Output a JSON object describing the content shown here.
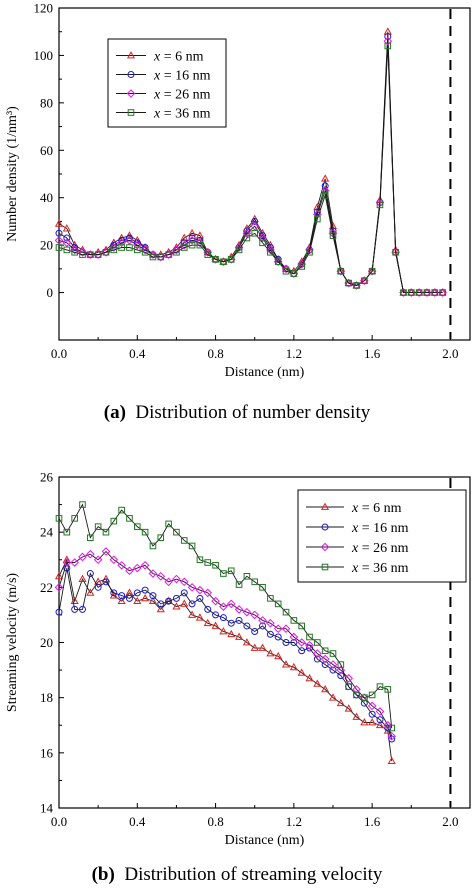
{
  "captions": [
    {
      "letter": "(a)",
      "text": "Distribution of number density"
    },
    {
      "letter": "(b)",
      "text": "Distribution of streaming velocity"
    }
  ],
  "colors": {
    "s6": "#e0201e",
    "s16": "#1a1ad6",
    "s26": "#ee10ee",
    "s36": "#1f7a1f",
    "axis": "#000000"
  },
  "chart_data": [
    {
      "type": "line",
      "xlabel": "Distance (nm)",
      "ylabel": "Number density (1/nm³)",
      "xlim": [
        0.0,
        2.1
      ],
      "ylim": [
        -20,
        120
      ],
      "xticks": [
        0.0,
        0.4,
        0.8,
        1.2,
        1.6,
        2.0
      ],
      "yticks": [
        0,
        20,
        40,
        60,
        80,
        100,
        120
      ],
      "grid": false,
      "legend_position": "top-left",
      "reference_line_x": 2.0,
      "x": [
        0.0,
        0.04,
        0.08,
        0.12,
        0.16,
        0.2,
        0.24,
        0.28,
        0.32,
        0.36,
        0.4,
        0.44,
        0.48,
        0.52,
        0.56,
        0.6,
        0.64,
        0.68,
        0.72,
        0.76,
        0.8,
        0.84,
        0.88,
        0.92,
        0.96,
        1.0,
        1.04,
        1.08,
        1.12,
        1.16,
        1.2,
        1.24,
        1.28,
        1.32,
        1.36,
        1.4,
        1.44,
        1.48,
        1.52,
        1.56,
        1.6,
        1.64,
        1.68,
        1.72,
        1.76,
        1.8,
        1.84,
        1.88,
        1.92,
        1.96
      ],
      "series": [
        {
          "name": "x = 6 nm",
          "symbol": "triangle",
          "color_key": "s6",
          "values": [
            29,
            27,
            20,
            18,
            16,
            17,
            18,
            21,
            23,
            24,
            22,
            19,
            16,
            16,
            17,
            19,
            23,
            25,
            24,
            17,
            14,
            13,
            15,
            20,
            27,
            31,
            25,
            20,
            14,
            10,
            9,
            13,
            19,
            36,
            48,
            28,
            9,
            4,
            3,
            5,
            9,
            39,
            110,
            18,
            0,
            0,
            0,
            0,
            0,
            0
          ]
        },
        {
          "name": "x = 16 nm",
          "symbol": "circle",
          "color_key": "s16",
          "values": [
            25,
            23,
            19,
            17,
            16,
            16,
            17,
            20,
            22,
            23,
            21,
            19,
            16,
            15,
            16,
            18,
            21,
            23,
            22,
            17,
            14,
            13,
            14,
            19,
            26,
            30,
            24,
            19,
            14,
            10,
            8,
            12,
            18,
            34,
            45,
            26,
            9,
            4,
            3,
            5,
            9,
            38,
            108,
            17,
            0,
            0,
            0,
            0,
            0,
            0
          ]
        },
        {
          "name": "x = 26 nm",
          "symbol": "diamond",
          "color_key": "s26",
          "values": [
            22,
            21,
            18,
            17,
            16,
            16,
            17,
            19,
            21,
            22,
            20,
            18,
            16,
            15,
            16,
            18,
            20,
            22,
            21,
            17,
            14,
            13,
            14,
            19,
            25,
            28,
            23,
            18,
            13,
            10,
            8,
            12,
            18,
            33,
            43,
            25,
            9,
            4,
            3,
            5,
            9,
            38,
            106,
            17,
            0,
            0,
            0,
            0,
            0,
            0
          ]
        },
        {
          "name": "x = 36 nm",
          "symbol": "square",
          "color_key": "s36",
          "values": [
            19,
            18,
            17,
            16,
            16,
            16,
            17,
            18,
            19,
            19,
            18,
            17,
            15,
            15,
            16,
            17,
            19,
            20,
            20,
            16,
            14,
            13,
            14,
            18,
            23,
            25,
            21,
            17,
            13,
            9,
            8,
            11,
            17,
            31,
            41,
            24,
            9,
            4,
            3,
            5,
            9,
            37,
            104,
            17,
            0,
            0,
            0,
            0,
            0,
            0
          ]
        }
      ]
    },
    {
      "type": "line",
      "xlabel": "Distance (nm)",
      "ylabel": "Streaming velocity (m/s)",
      "xlim": [
        0.0,
        2.1
      ],
      "ylim": [
        14,
        26
      ],
      "xticks": [
        0.0,
        0.4,
        0.8,
        1.2,
        1.6,
        2.0
      ],
      "yticks": [
        14,
        16,
        18,
        20,
        22,
        24,
        26
      ],
      "grid": false,
      "legend_position": "top-right",
      "reference_line_x": 2.0,
      "x": [
        0.0,
        0.04,
        0.08,
        0.12,
        0.16,
        0.2,
        0.24,
        0.28,
        0.32,
        0.36,
        0.4,
        0.44,
        0.48,
        0.52,
        0.56,
        0.6,
        0.64,
        0.68,
        0.72,
        0.76,
        0.8,
        0.84,
        0.88,
        0.92,
        0.96,
        1.0,
        1.04,
        1.08,
        1.12,
        1.16,
        1.2,
        1.24,
        1.28,
        1.32,
        1.36,
        1.4,
        1.44,
        1.48,
        1.52,
        1.56,
        1.6,
        1.64,
        1.68,
        1.7
      ],
      "series": [
        {
          "name": "x = 6 nm",
          "symbol": "triangle",
          "color_key": "s6",
          "values": [
            22.4,
            23.0,
            21.5,
            22.3,
            21.8,
            22.2,
            22.3,
            21.7,
            21.5,
            21.8,
            21.5,
            21.6,
            21.5,
            21.2,
            21.5,
            21.3,
            21.4,
            21.0,
            20.9,
            20.7,
            20.6,
            20.4,
            20.3,
            20.2,
            20.0,
            19.8,
            19.8,
            19.6,
            19.5,
            19.2,
            19.1,
            18.9,
            18.7,
            18.5,
            18.3,
            18.0,
            17.8,
            17.6,
            17.3,
            17.1,
            17.1,
            17.0,
            16.8,
            15.7
          ]
        },
        {
          "name": "x = 16 nm",
          "symbol": "circle",
          "color_key": "s16",
          "values": [
            21.1,
            22.7,
            21.2,
            21.2,
            22.5,
            22.0,
            22.2,
            21.8,
            21.7,
            21.6,
            21.8,
            21.9,
            21.7,
            21.4,
            21.5,
            21.6,
            21.8,
            21.4,
            21.6,
            21.2,
            21.0,
            20.9,
            20.7,
            20.8,
            20.6,
            20.4,
            20.6,
            20.3,
            20.2,
            20.0,
            20.0,
            19.7,
            19.8,
            19.4,
            19.2,
            19.0,
            18.8,
            18.4,
            18.1,
            17.8,
            17.4,
            17.2,
            16.9,
            16.5
          ]
        },
        {
          "name": "x = 26 nm",
          "symbol": "diamond",
          "color_key": "s26",
          "values": [
            22.0,
            22.9,
            22.9,
            23.1,
            23.2,
            23.0,
            23.3,
            23.0,
            22.8,
            22.6,
            22.7,
            22.8,
            22.5,
            22.4,
            22.2,
            22.3,
            22.2,
            22.0,
            21.9,
            21.8,
            21.5,
            21.3,
            21.4,
            21.2,
            21.1,
            21.0,
            20.8,
            20.7,
            20.5,
            20.5,
            20.2,
            20.0,
            19.9,
            19.6,
            19.4,
            19.2,
            19.0,
            18.7,
            18.3,
            18.0,
            17.7,
            17.5,
            17.0,
            16.6
          ]
        },
        {
          "name": "x = 36 nm",
          "symbol": "square",
          "color_key": "s36",
          "values": [
            24.5,
            24.0,
            24.5,
            25.0,
            23.8,
            24.2,
            24.0,
            24.4,
            24.8,
            24.5,
            24.2,
            24.0,
            23.5,
            23.8,
            24.3,
            24.0,
            23.7,
            23.5,
            23.0,
            22.9,
            22.8,
            22.5,
            22.6,
            22.1,
            22.4,
            22.2,
            22.0,
            21.6,
            21.4,
            21.1,
            20.8,
            20.6,
            20.2,
            20.0,
            19.7,
            19.6,
            19.2,
            18.4,
            18.1,
            18.0,
            18.1,
            18.4,
            18.3,
            16.9
          ]
        }
      ]
    }
  ]
}
